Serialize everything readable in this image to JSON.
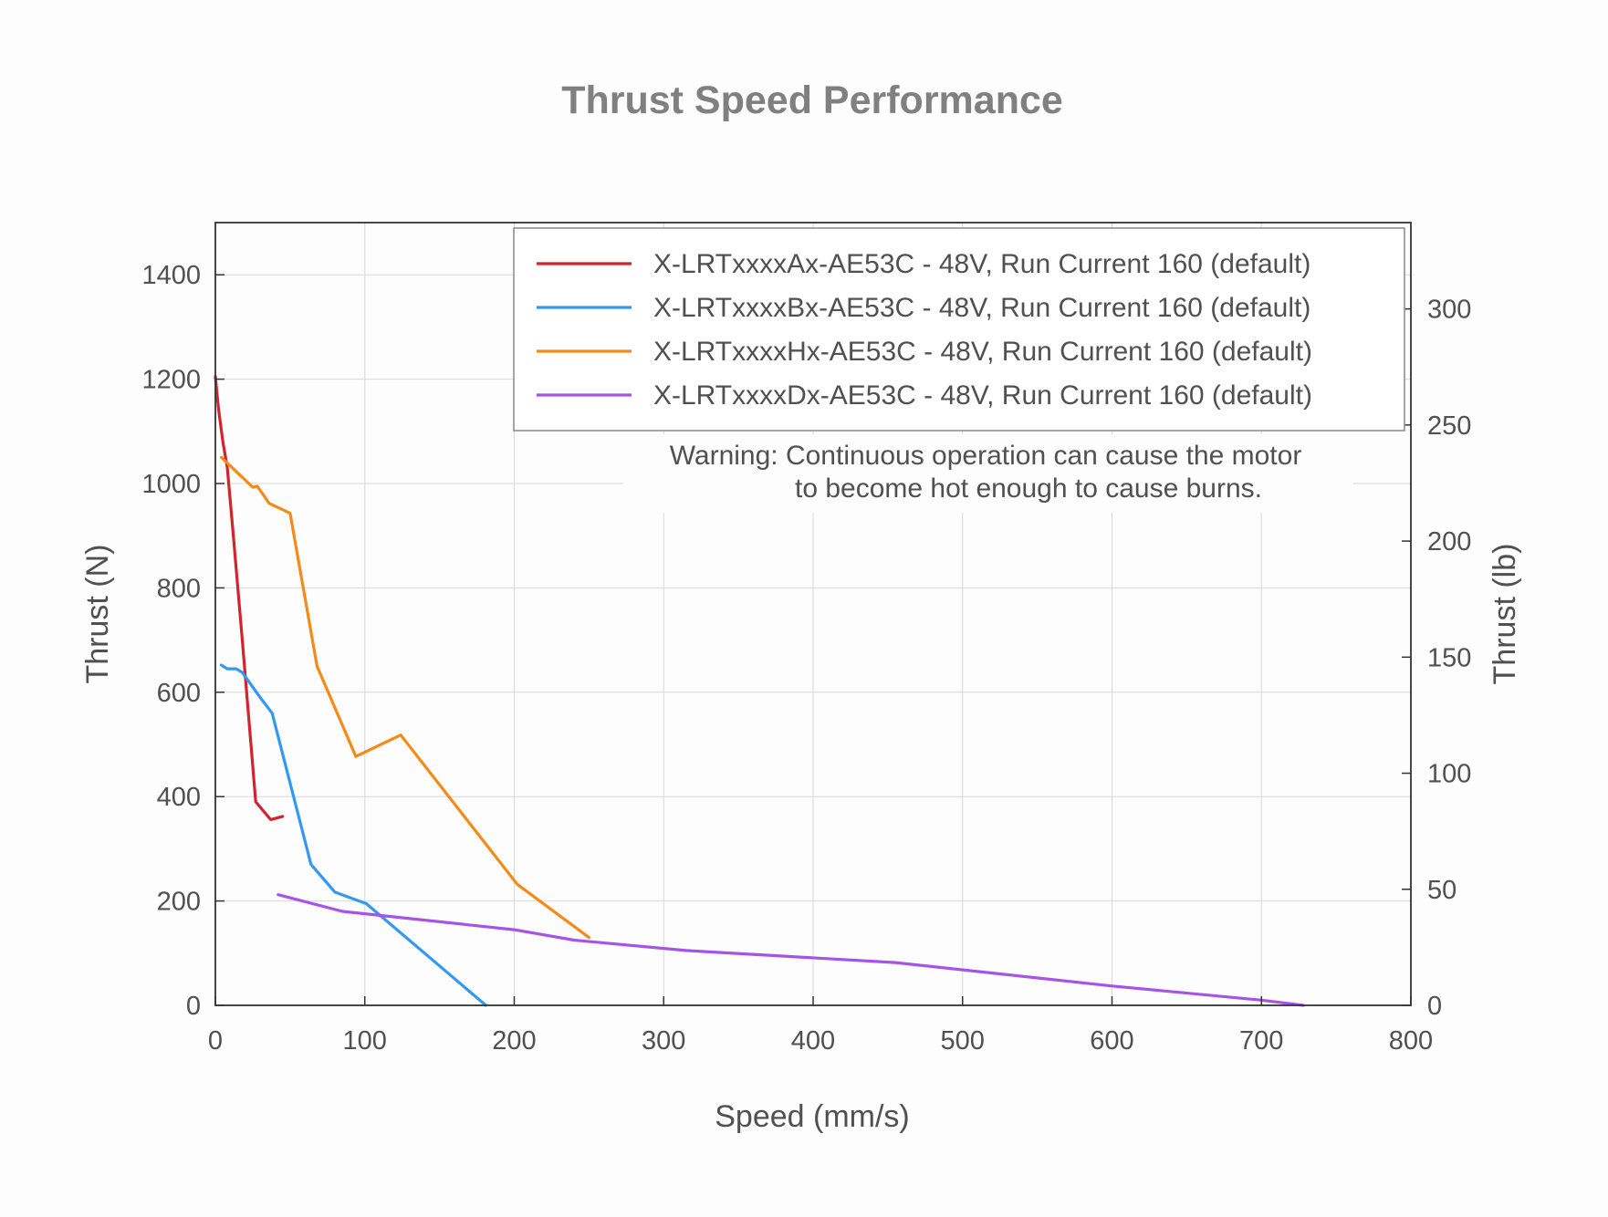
{
  "chart_data": {
    "type": "line",
    "title": "Thrust Speed Performance",
    "xlabel": "Speed (mm/s)",
    "ylabel": "Thrust (N)",
    "y2label": "Thrust (lb)",
    "xlim": [
      0,
      800
    ],
    "ylim": [
      0,
      1500
    ],
    "y2lim": [
      0,
      337.2
    ],
    "xticks": [
      0,
      100,
      200,
      300,
      400,
      500,
      600,
      700,
      800
    ],
    "yticks": [
      0,
      200,
      400,
      600,
      800,
      1000,
      1200,
      1400
    ],
    "y2ticks": [
      0,
      50,
      100,
      150,
      200,
      250,
      300
    ],
    "grid": true,
    "legend_position": "top-right",
    "annotation": [
      "Warning: Continuous operation can cause the motor",
      "to become hot enough to cause burns."
    ],
    "series": [
      {
        "name": "X-LRTxxxxAx-AE53C - 48V, Run Current 160 (default)",
        "color": "#d1242f",
        "points": [
          [
            0,
            1205
          ],
          [
            2,
            1145
          ],
          [
            5,
            1080
          ],
          [
            8,
            1030
          ],
          [
            12,
            900
          ],
          [
            18,
            700
          ],
          [
            27,
            390
          ],
          [
            37,
            356
          ],
          [
            45,
            362
          ]
        ]
      },
      {
        "name": "X-LRTxxxxBx-AE53C - 48V, Run Current 160 (default)",
        "color": "#3399f0",
        "points": [
          [
            4,
            652
          ],
          [
            8,
            645
          ],
          [
            14,
            645
          ],
          [
            18,
            638
          ],
          [
            30,
            590
          ],
          [
            38,
            560
          ],
          [
            64,
            270
          ],
          [
            80,
            217
          ],
          [
            101,
            195
          ],
          [
            181,
            0
          ]
        ]
      },
      {
        "name": "X-LRTxxxxHx-AE53C - 48V, Run Current 160 (default)",
        "color": "#f58a18",
        "points": [
          [
            4,
            1050
          ],
          [
            25,
            993
          ],
          [
            28,
            995
          ],
          [
            36,
            962
          ],
          [
            50,
            943
          ],
          [
            68,
            650
          ],
          [
            94,
            477
          ],
          [
            124,
            518
          ],
          [
            202,
            232
          ],
          [
            250,
            130
          ]
        ]
      },
      {
        "name": "X-LRTxxxxDx-AE53C - 48V, Run Current 160 (default)",
        "color": "#a653e8",
        "points": [
          [
            42,
            212
          ],
          [
            85,
            180
          ],
          [
            200,
            145
          ],
          [
            240,
            125
          ],
          [
            315,
            105
          ],
          [
            455,
            82
          ],
          [
            600,
            37
          ],
          [
            700,
            10
          ],
          [
            728,
            0
          ]
        ]
      }
    ]
  }
}
